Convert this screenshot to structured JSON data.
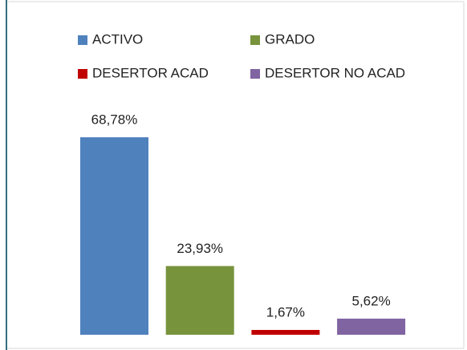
{
  "chart_data": {
    "type": "bar",
    "series": [
      {
        "name": "ACTIVO",
        "color": "#4f81bd",
        "values": [
          68.78
        ],
        "value_labels": [
          "68,78%"
        ]
      },
      {
        "name": "GRADO",
        "color": "#77933c",
        "values": [
          23.93
        ],
        "value_labels": [
          "23,93%"
        ]
      },
      {
        "name": "DESERTOR ACAD",
        "color": "#c00000",
        "values": [
          1.67
        ],
        "value_labels": [
          "1,67%"
        ]
      },
      {
        "name": "DESERTOR NO ACAD",
        "color": "#8064a2",
        "values": [
          5.62
        ],
        "value_labels": [
          "5,62%"
        ]
      }
    ]
  }
}
